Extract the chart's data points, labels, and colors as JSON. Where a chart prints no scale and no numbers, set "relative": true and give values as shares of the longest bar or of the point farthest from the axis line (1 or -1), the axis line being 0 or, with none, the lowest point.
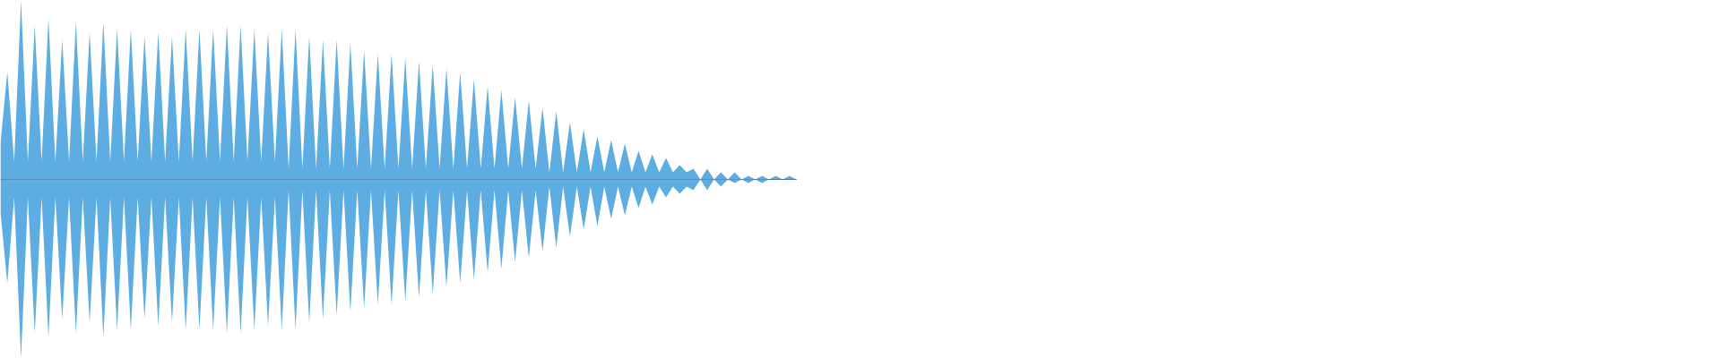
{
  "chart_data": {
    "type": "area",
    "relative": true,
    "grid": false,
    "categories": [
      null,
      null,
      null,
      null,
      null,
      null,
      null,
      null,
      null,
      null,
      null,
      null,
      null,
      null,
      null,
      null,
      null,
      null,
      null,
      null,
      null,
      null,
      null,
      null,
      null,
      null,
      null,
      null,
      null,
      null,
      null,
      null,
      null,
      null,
      null,
      null,
      null,
      null,
      null,
      null,
      null,
      null,
      null,
      null,
      null,
      null,
      null,
      null,
      null,
      null,
      null,
      null,
      null,
      null,
      null,
      null,
      null,
      null,
      null,
      null,
      null,
      null,
      null,
      null,
      null,
      null,
      null,
      null,
      null,
      null,
      null,
      null,
      null,
      null,
      null,
      null,
      null,
      null,
      null,
      null,
      null,
      null,
      null,
      null,
      null,
      null,
      null,
      null,
      null,
      null,
      null,
      null,
      null,
      null,
      null,
      null,
      null,
      null,
      null,
      null,
      null,
      null,
      null,
      null,
      null,
      null,
      null,
      null,
      null,
      null,
      null,
      null,
      null,
      null,
      null,
      null,
      null
    ],
    "series": [
      {
        "color": "#5dace2",
        "values": [
          0.2,
          0.6,
          0.1,
          1.0,
          0.1,
          0.86,
          0.1,
          0.9,
          0.1,
          0.78,
          0.1,
          0.88,
          0.1,
          0.82,
          0.1,
          0.88,
          0.1,
          0.84,
          0.1,
          0.84,
          0.1,
          0.8,
          0.1,
          0.82,
          0.1,
          0.8,
          0.1,
          0.84,
          0.1,
          0.84,
          0.1,
          0.84,
          0.1,
          0.86,
          0.1,
          0.86,
          0.1,
          0.84,
          0.1,
          0.82,
          0.1,
          0.84,
          0.06,
          0.84,
          0.06,
          0.8,
          0.06,
          0.78,
          0.06,
          0.78,
          0.06,
          0.76,
          0.06,
          0.72,
          0.06,
          0.7,
          0.06,
          0.7,
          0.06,
          0.68,
          0.06,
          0.66,
          0.06,
          0.64,
          0.06,
          0.62,
          0.06,
          0.6,
          0.06,
          0.56,
          0.06,
          0.52,
          0.06,
          0.5,
          0.06,
          0.46,
          0.06,
          0.44,
          0.06,
          0.4,
          0.04,
          0.38,
          0.04,
          0.32,
          0.04,
          0.28,
          0.04,
          0.24,
          0.04,
          0.22,
          0.04,
          0.2,
          0.04,
          0.16,
          0.04,
          0.14,
          0.04,
          0.12,
          0.04,
          0.08,
          0.04,
          0.06,
          0,
          0.06,
          0,
          0.04,
          0,
          0.04,
          0,
          0.02,
          0,
          0.02,
          0,
          0.02,
          0,
          0.02,
          0
        ]
      },
      {
        "color": "#5dace2",
        "values": [
          -0.18,
          -0.58,
          -0.1,
          -1.0,
          -0.1,
          -0.86,
          -0.1,
          -0.88,
          -0.1,
          -0.78,
          -0.1,
          -0.86,
          -0.1,
          -0.8,
          -0.1,
          -0.88,
          -0.1,
          -0.84,
          -0.1,
          -0.84,
          -0.1,
          -0.78,
          -0.1,
          -0.82,
          -0.1,
          -0.8,
          -0.1,
          -0.84,
          -0.1,
          -0.84,
          -0.1,
          -0.84,
          -0.1,
          -0.86,
          -0.1,
          -0.86,
          -0.1,
          -0.84,
          -0.1,
          -0.82,
          -0.1,
          -0.84,
          -0.06,
          -0.84,
          -0.06,
          -0.8,
          -0.06,
          -0.78,
          -0.06,
          -0.76,
          -0.06,
          -0.74,
          -0.06,
          -0.72,
          -0.06,
          -0.7,
          -0.06,
          -0.7,
          -0.06,
          -0.68,
          -0.06,
          -0.66,
          -0.06,
          -0.64,
          -0.06,
          -0.6,
          -0.06,
          -0.58,
          -0.06,
          -0.56,
          -0.06,
          -0.52,
          -0.06,
          -0.5,
          -0.06,
          -0.46,
          -0.06,
          -0.44,
          -0.06,
          -0.4,
          -0.04,
          -0.38,
          -0.04,
          -0.32,
          -0.04,
          -0.28,
          -0.04,
          -0.26,
          -0.04,
          -0.22,
          -0.04,
          -0.2,
          -0.04,
          -0.16,
          -0.04,
          -0.14,
          -0.04,
          -0.1,
          -0.04,
          -0.08,
          -0.04,
          -0.06,
          0,
          -0.06,
          0,
          -0.04,
          0,
          -0.02,
          0,
          -0.02,
          0,
          -0.02,
          0,
          0,
          0,
          0,
          0
        ]
      }
    ]
  }
}
